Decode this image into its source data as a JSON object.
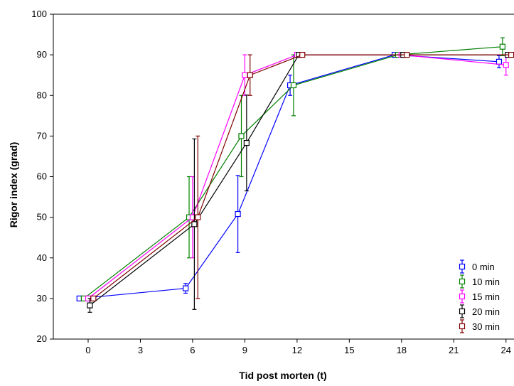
{
  "chart_data": {
    "type": "line",
    "title": "",
    "xlabel": "Tid post morten (t)",
    "ylabel": "Rigor index (grad)",
    "xlim": [
      -2,
      24.5
    ],
    "ylim": [
      20,
      100
    ],
    "x_ticks": [
      0,
      3,
      6,
      9,
      12,
      15,
      18,
      21,
      24
    ],
    "y_ticks": [
      20,
      30,
      40,
      50,
      60,
      70,
      80,
      90,
      100
    ],
    "grid": false,
    "legend_position": "bottom-right",
    "series": [
      {
        "name": "0 min",
        "color": "#0000ff",
        "points": [
          {
            "x": -0.5,
            "y": 30,
            "err": 0
          },
          {
            "x": 5.6,
            "y": 32.5,
            "err": 1.2
          },
          {
            "x": 8.6,
            "y": 50.8,
            "err": 9.5
          },
          {
            "x": 11.6,
            "y": 82.5,
            "err": 2.5
          },
          {
            "x": 17.6,
            "y": 90,
            "err": 0
          },
          {
            "x": 23.6,
            "y": 88.3,
            "err": 1.5
          }
        ]
      },
      {
        "name": "10 min",
        "color": "#008000",
        "points": [
          {
            "x": -0.25,
            "y": 30,
            "err": 0
          },
          {
            "x": 5.8,
            "y": 50,
            "err": 10
          },
          {
            "x": 8.8,
            "y": 70,
            "err": 10
          },
          {
            "x": 11.8,
            "y": 82.5,
            "err": 7.5
          },
          {
            "x": 17.8,
            "y": 90,
            "err": 0
          },
          {
            "x": 23.8,
            "y": 92,
            "err": 2.2
          }
        ]
      },
      {
        "name": "15 min",
        "color": "#ff00ff",
        "points": [
          {
            "x": 0,
            "y": 30,
            "err": 0
          },
          {
            "x": 6.0,
            "y": 50,
            "err": 10
          },
          {
            "x": 9.0,
            "y": 85,
            "err": 5
          },
          {
            "x": 12.0,
            "y": 90,
            "err": 0
          },
          {
            "x": 18.0,
            "y": 90,
            "err": 0
          },
          {
            "x": 24.0,
            "y": 87.5,
            "err": 2.5
          }
        ]
      },
      {
        "name": "20 min",
        "color": "#000000",
        "points": [
          {
            "x": 0.1,
            "y": 28.3,
            "err": 1.7
          },
          {
            "x": 6.1,
            "y": 48.3,
            "err": 21
          },
          {
            "x": 9.1,
            "y": 68.3,
            "err": 11.8
          },
          {
            "x": 12.1,
            "y": 90,
            "err": 0
          },
          {
            "x": 18.1,
            "y": 90,
            "err": 0
          },
          {
            "x": 24.1,
            "y": 90,
            "err": 0
          }
        ]
      },
      {
        "name": "30 min",
        "color": "#800000",
        "points": [
          {
            "x": 0.3,
            "y": 30,
            "err": 0
          },
          {
            "x": 6.3,
            "y": 50,
            "err": 20
          },
          {
            "x": 9.3,
            "y": 85,
            "err": 5
          },
          {
            "x": 12.3,
            "y": 90,
            "err": 0
          },
          {
            "x": 18.3,
            "y": 90,
            "err": 0
          },
          {
            "x": 24.3,
            "y": 90,
            "err": 0
          }
        ]
      }
    ]
  }
}
